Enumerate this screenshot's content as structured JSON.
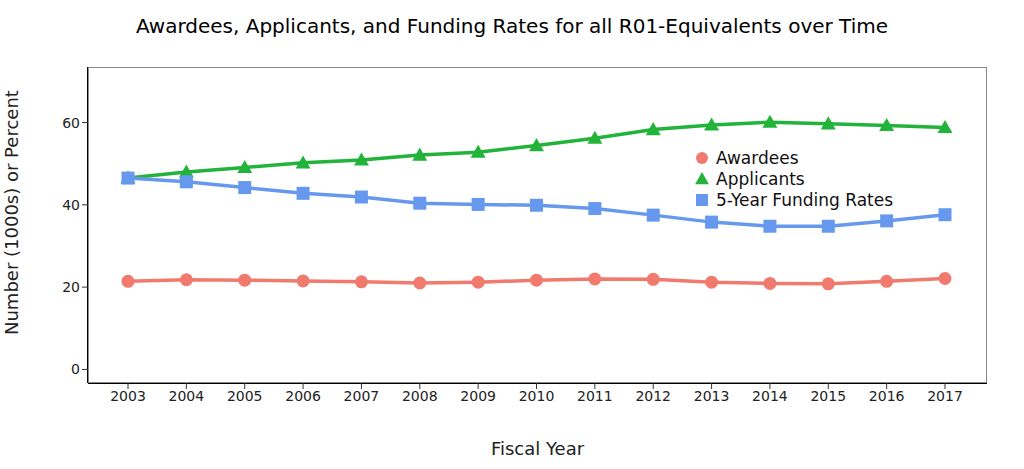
{
  "chart_data": {
    "type": "line",
    "title": "Awardees, Applicants, and Funding Rates for all R01-Equivalents over Time",
    "x_label": "Fiscal Year",
    "y_label": "Number (1000s) or Percent",
    "categories": [
      "2003",
      "2004",
      "2005",
      "2006",
      "2007",
      "2008",
      "2009",
      "2010",
      "2011",
      "2012",
      "2013",
      "2014",
      "2015",
      "2016",
      "2017"
    ],
    "series": [
      {
        "name": "Awardees",
        "color": "#f07a6e",
        "marker": "circle",
        "values": [
          21.4,
          21.8,
          21.7,
          21.5,
          21.3,
          21.0,
          21.2,
          21.7,
          22.0,
          21.9,
          21.2,
          20.9,
          20.8,
          21.4,
          22.1
        ]
      },
      {
        "name": "Applicants",
        "color": "#22b33a",
        "marker": "triangle",
        "values": [
          46.5,
          48.0,
          49.1,
          50.2,
          50.9,
          52.1,
          52.8,
          54.4,
          56.2,
          58.3,
          59.4,
          60.1,
          59.7,
          59.3,
          58.8
        ]
      },
      {
        "name": "5-Year Funding Rates",
        "color": "#6699ee",
        "marker": "square",
        "values": [
          46.5,
          45.6,
          44.2,
          42.8,
          41.9,
          40.4,
          40.1,
          39.9,
          39.1,
          37.5,
          35.8,
          34.8,
          34.8,
          36.1,
          37.6
        ]
      }
    ],
    "ylim": [
      -3.3,
      73.5
    ],
    "yticks": [
      0,
      20,
      40,
      60
    ],
    "grid": false,
    "legend": "right"
  }
}
